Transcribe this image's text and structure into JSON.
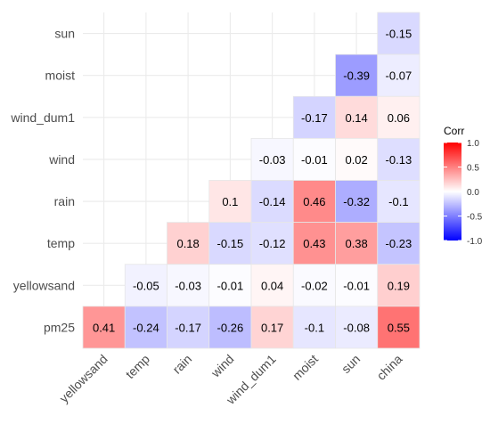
{
  "chart_data": {
    "type": "heatmap",
    "title": "",
    "xlabel": "",
    "ylabel": "",
    "x_categories": [
      "yellowsand",
      "temp",
      "rain",
      "wind",
      "wind_dum1",
      "moist",
      "sun",
      "china"
    ],
    "y_categories": [
      "sun",
      "moist",
      "wind_dum1",
      "wind",
      "rain",
      "temp",
      "yellowsand",
      "pm25"
    ],
    "cells": [
      {
        "row": "sun",
        "col": "china",
        "value": -0.15,
        "label": "-0.15"
      },
      {
        "row": "moist",
        "col": "sun",
        "value": -0.39,
        "label": "-0.39"
      },
      {
        "row": "moist",
        "col": "china",
        "value": -0.07,
        "label": "-0.07"
      },
      {
        "row": "wind_dum1",
        "col": "moist",
        "value": -0.17,
        "label": "-0.17"
      },
      {
        "row": "wind_dum1",
        "col": "sun",
        "value": 0.14,
        "label": "0.14"
      },
      {
        "row": "wind_dum1",
        "col": "china",
        "value": 0.06,
        "label": "0.06"
      },
      {
        "row": "wind",
        "col": "wind_dum1",
        "value": -0.03,
        "label": "-0.03"
      },
      {
        "row": "wind",
        "col": "moist",
        "value": -0.01,
        "label": "-0.01"
      },
      {
        "row": "wind",
        "col": "sun",
        "value": 0.02,
        "label": "0.02"
      },
      {
        "row": "wind",
        "col": "china",
        "value": -0.13,
        "label": "-0.13"
      },
      {
        "row": "rain",
        "col": "wind",
        "value": 0.1,
        "label": "0.1"
      },
      {
        "row": "rain",
        "col": "wind_dum1",
        "value": -0.14,
        "label": "-0.14"
      },
      {
        "row": "rain",
        "col": "moist",
        "value": 0.46,
        "label": "0.46"
      },
      {
        "row": "rain",
        "col": "sun",
        "value": -0.32,
        "label": "-0.32"
      },
      {
        "row": "rain",
        "col": "china",
        "value": -0.1,
        "label": "-0.1"
      },
      {
        "row": "temp",
        "col": "rain",
        "value": 0.18,
        "label": "0.18"
      },
      {
        "row": "temp",
        "col": "wind",
        "value": -0.15,
        "label": "-0.15"
      },
      {
        "row": "temp",
        "col": "wind_dum1",
        "value": -0.12,
        "label": "-0.12"
      },
      {
        "row": "temp",
        "col": "moist",
        "value": 0.43,
        "label": "0.43"
      },
      {
        "row": "temp",
        "col": "sun",
        "value": 0.38,
        "label": "0.38"
      },
      {
        "row": "temp",
        "col": "china",
        "value": -0.23,
        "label": "-0.23"
      },
      {
        "row": "yellowsand",
        "col": "temp",
        "value": -0.05,
        "label": "-0.05"
      },
      {
        "row": "yellowsand",
        "col": "rain",
        "value": -0.03,
        "label": "-0.03"
      },
      {
        "row": "yellowsand",
        "col": "wind",
        "value": -0.01,
        "label": "-0.01"
      },
      {
        "row": "yellowsand",
        "col": "wind_dum1",
        "value": 0.04,
        "label": "0.04"
      },
      {
        "row": "yellowsand",
        "col": "moist",
        "value": -0.02,
        "label": "-0.02"
      },
      {
        "row": "yellowsand",
        "col": "sun",
        "value": -0.01,
        "label": "-0.01"
      },
      {
        "row": "yellowsand",
        "col": "china",
        "value": 0.19,
        "label": "0.19"
      },
      {
        "row": "pm25",
        "col": "yellowsand",
        "value": 0.41,
        "label": "0.41"
      },
      {
        "row": "pm25",
        "col": "temp",
        "value": -0.24,
        "label": "-0.24"
      },
      {
        "row": "pm25",
        "col": "rain",
        "value": -0.17,
        "label": "-0.17"
      },
      {
        "row": "pm25",
        "col": "wind",
        "value": -0.26,
        "label": "-0.26"
      },
      {
        "row": "pm25",
        "col": "wind_dum1",
        "value": 0.17,
        "label": "0.17"
      },
      {
        "row": "pm25",
        "col": "moist",
        "value": -0.1,
        "label": "-0.1"
      },
      {
        "row": "pm25",
        "col": "sun",
        "value": -0.08,
        "label": "-0.08"
      },
      {
        "row": "pm25",
        "col": "china",
        "value": 0.55,
        "label": "0.55"
      }
    ],
    "legend": {
      "title": "Corr",
      "placement": "right",
      "range": [
        -1,
        1
      ],
      "ticks": [
        {
          "value": 1,
          "label": "1.0"
        },
        {
          "value": 0.5,
          "label": "0.5"
        },
        {
          "value": 0,
          "label": "0.0"
        },
        {
          "value": -0.5,
          "label": "-0.5"
        },
        {
          "value": -1,
          "label": "-1.0"
        }
      ]
    },
    "colors": {
      "low": "#0000ff",
      "mid": "#ffffff",
      "high": "#ff0000",
      "grid": "#ebebeb",
      "tile_border": "#e6e6e6",
      "label_text": "#000000",
      "axis_text": "#4d4d4d"
    },
    "grid": true
  }
}
